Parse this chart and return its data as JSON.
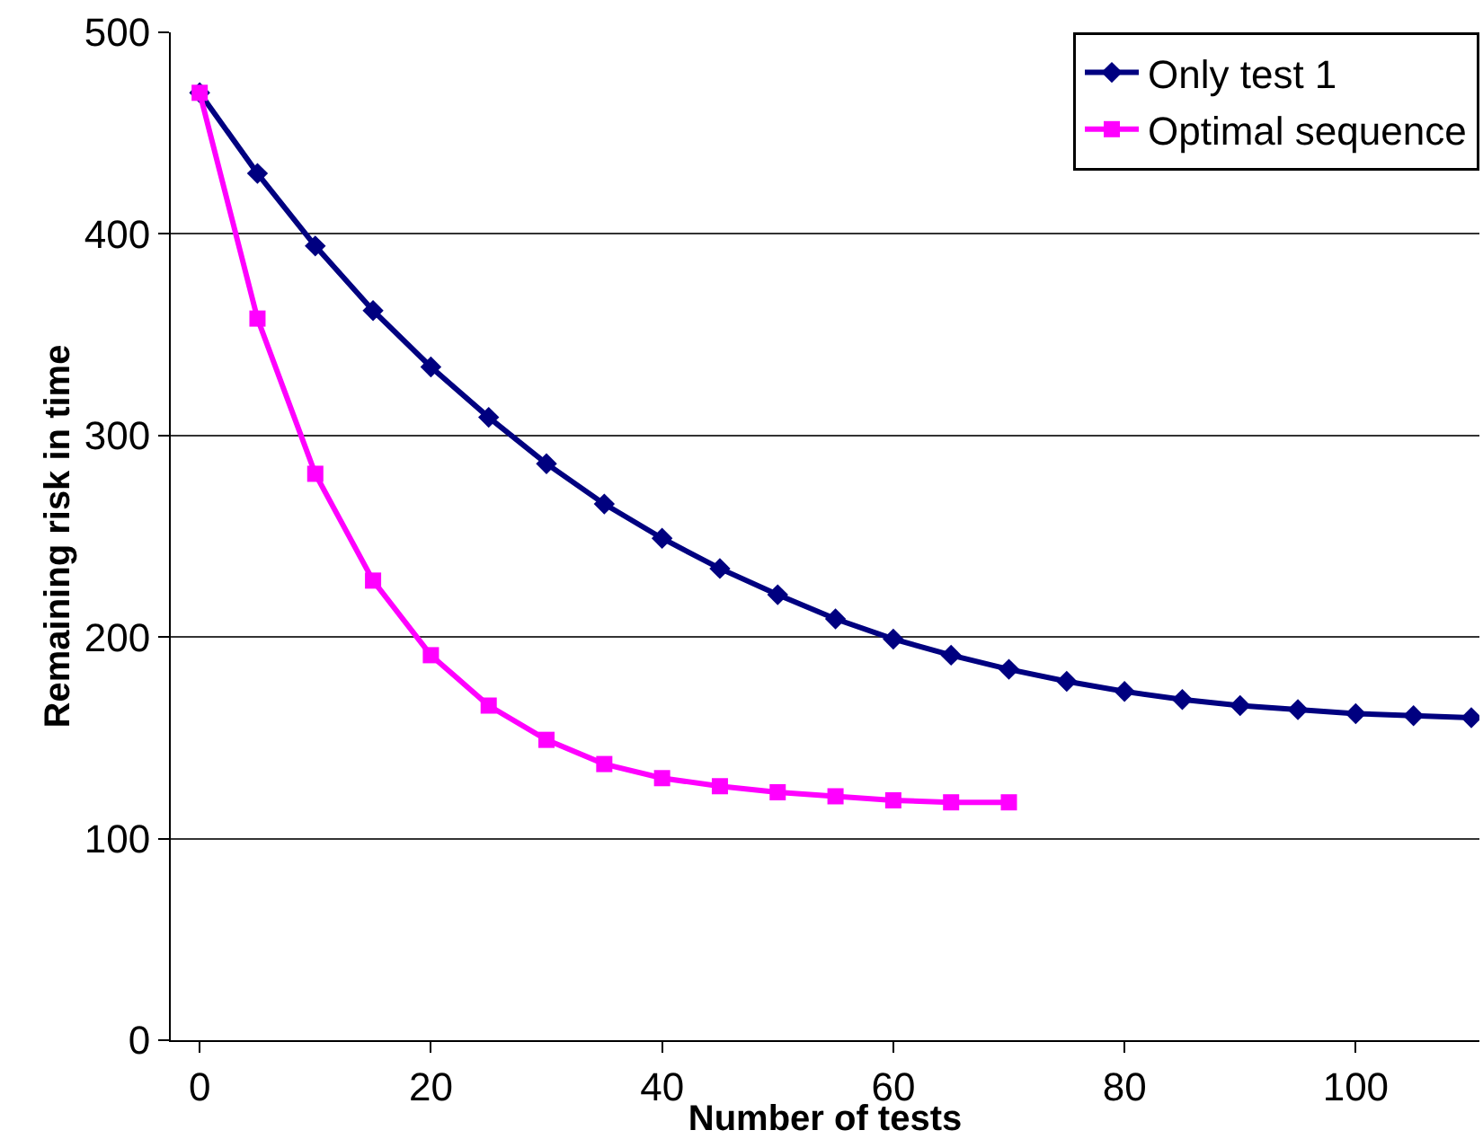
{
  "chart_data": {
    "type": "line",
    "xlabel": "Number of tests",
    "ylabel": "Remaining risk in time",
    "xlim": [
      -2.5,
      110.7
    ],
    "xticks": [
      0,
      20,
      40,
      60,
      80,
      100
    ],
    "ylim": [
      0,
      500
    ],
    "yticks": [
      0,
      100,
      200,
      300,
      400,
      500
    ],
    "grid": "y",
    "legend": "top right",
    "line_style": "solid",
    "series": [
      {
        "name": "Only test 1",
        "color": "#000080",
        "marker": "diamond",
        "x": [
          0,
          5,
          10,
          15,
          20,
          25,
          30,
          35,
          40,
          45,
          50,
          55,
          60,
          65,
          70,
          75,
          80,
          85,
          90,
          95,
          100,
          105,
          110
        ],
        "values": [
          470,
          430,
          394,
          362,
          334,
          309,
          286,
          266,
          249,
          234,
          221,
          209,
          199,
          191,
          184,
          178,
          173,
          169,
          166,
          164,
          162,
          161,
          160
        ]
      },
      {
        "name": "Optimal sequence",
        "color": "#ff00ff",
        "marker": "square",
        "x": [
          0,
          5,
          10,
          15,
          20,
          25,
          30,
          35,
          40,
          45,
          50,
          55,
          60,
          65,
          70
        ],
        "values": [
          470,
          358,
          281,
          228,
          191,
          166,
          149,
          137,
          130,
          126,
          123,
          121,
          119,
          118,
          118
        ]
      }
    ]
  }
}
